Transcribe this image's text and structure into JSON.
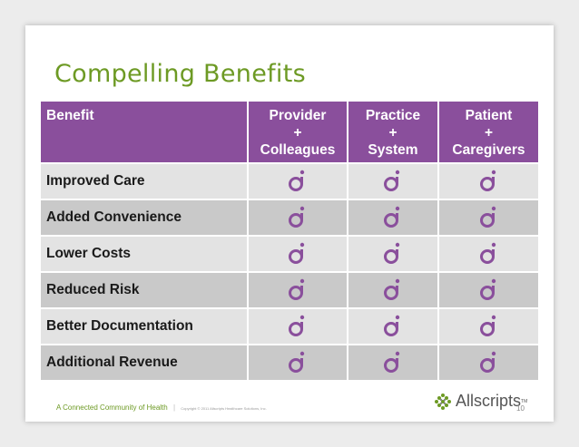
{
  "title": "Compelling Benefits",
  "table": {
    "header": {
      "benefit": "Benefit",
      "columns": [
        [
          "Provider",
          "+",
          "Colleagues"
        ],
        [
          "Practice",
          "+",
          "System"
        ],
        [
          "Patient",
          "+",
          "Caregivers"
        ]
      ]
    },
    "rows": [
      "Improved Care",
      "Added Convenience",
      "Lower Costs",
      "Reduced Risk",
      "Better Documentation",
      "Additional Revenue"
    ],
    "mark_icon": "purple-circle-dot-icon"
  },
  "footer": {
    "tagline": "A Connected Community of Health",
    "separator": "|",
    "copyright": "Copyright © 2011 Allscripts Healthcare Solutions, Inc.",
    "logo_name": "Allscripts",
    "logo_tm": "TM",
    "page_number": "10"
  },
  "colors": {
    "header_purple": "#8a4f9c",
    "title_green": "#6d9a24",
    "mark_purple": "#8a4f9c"
  }
}
